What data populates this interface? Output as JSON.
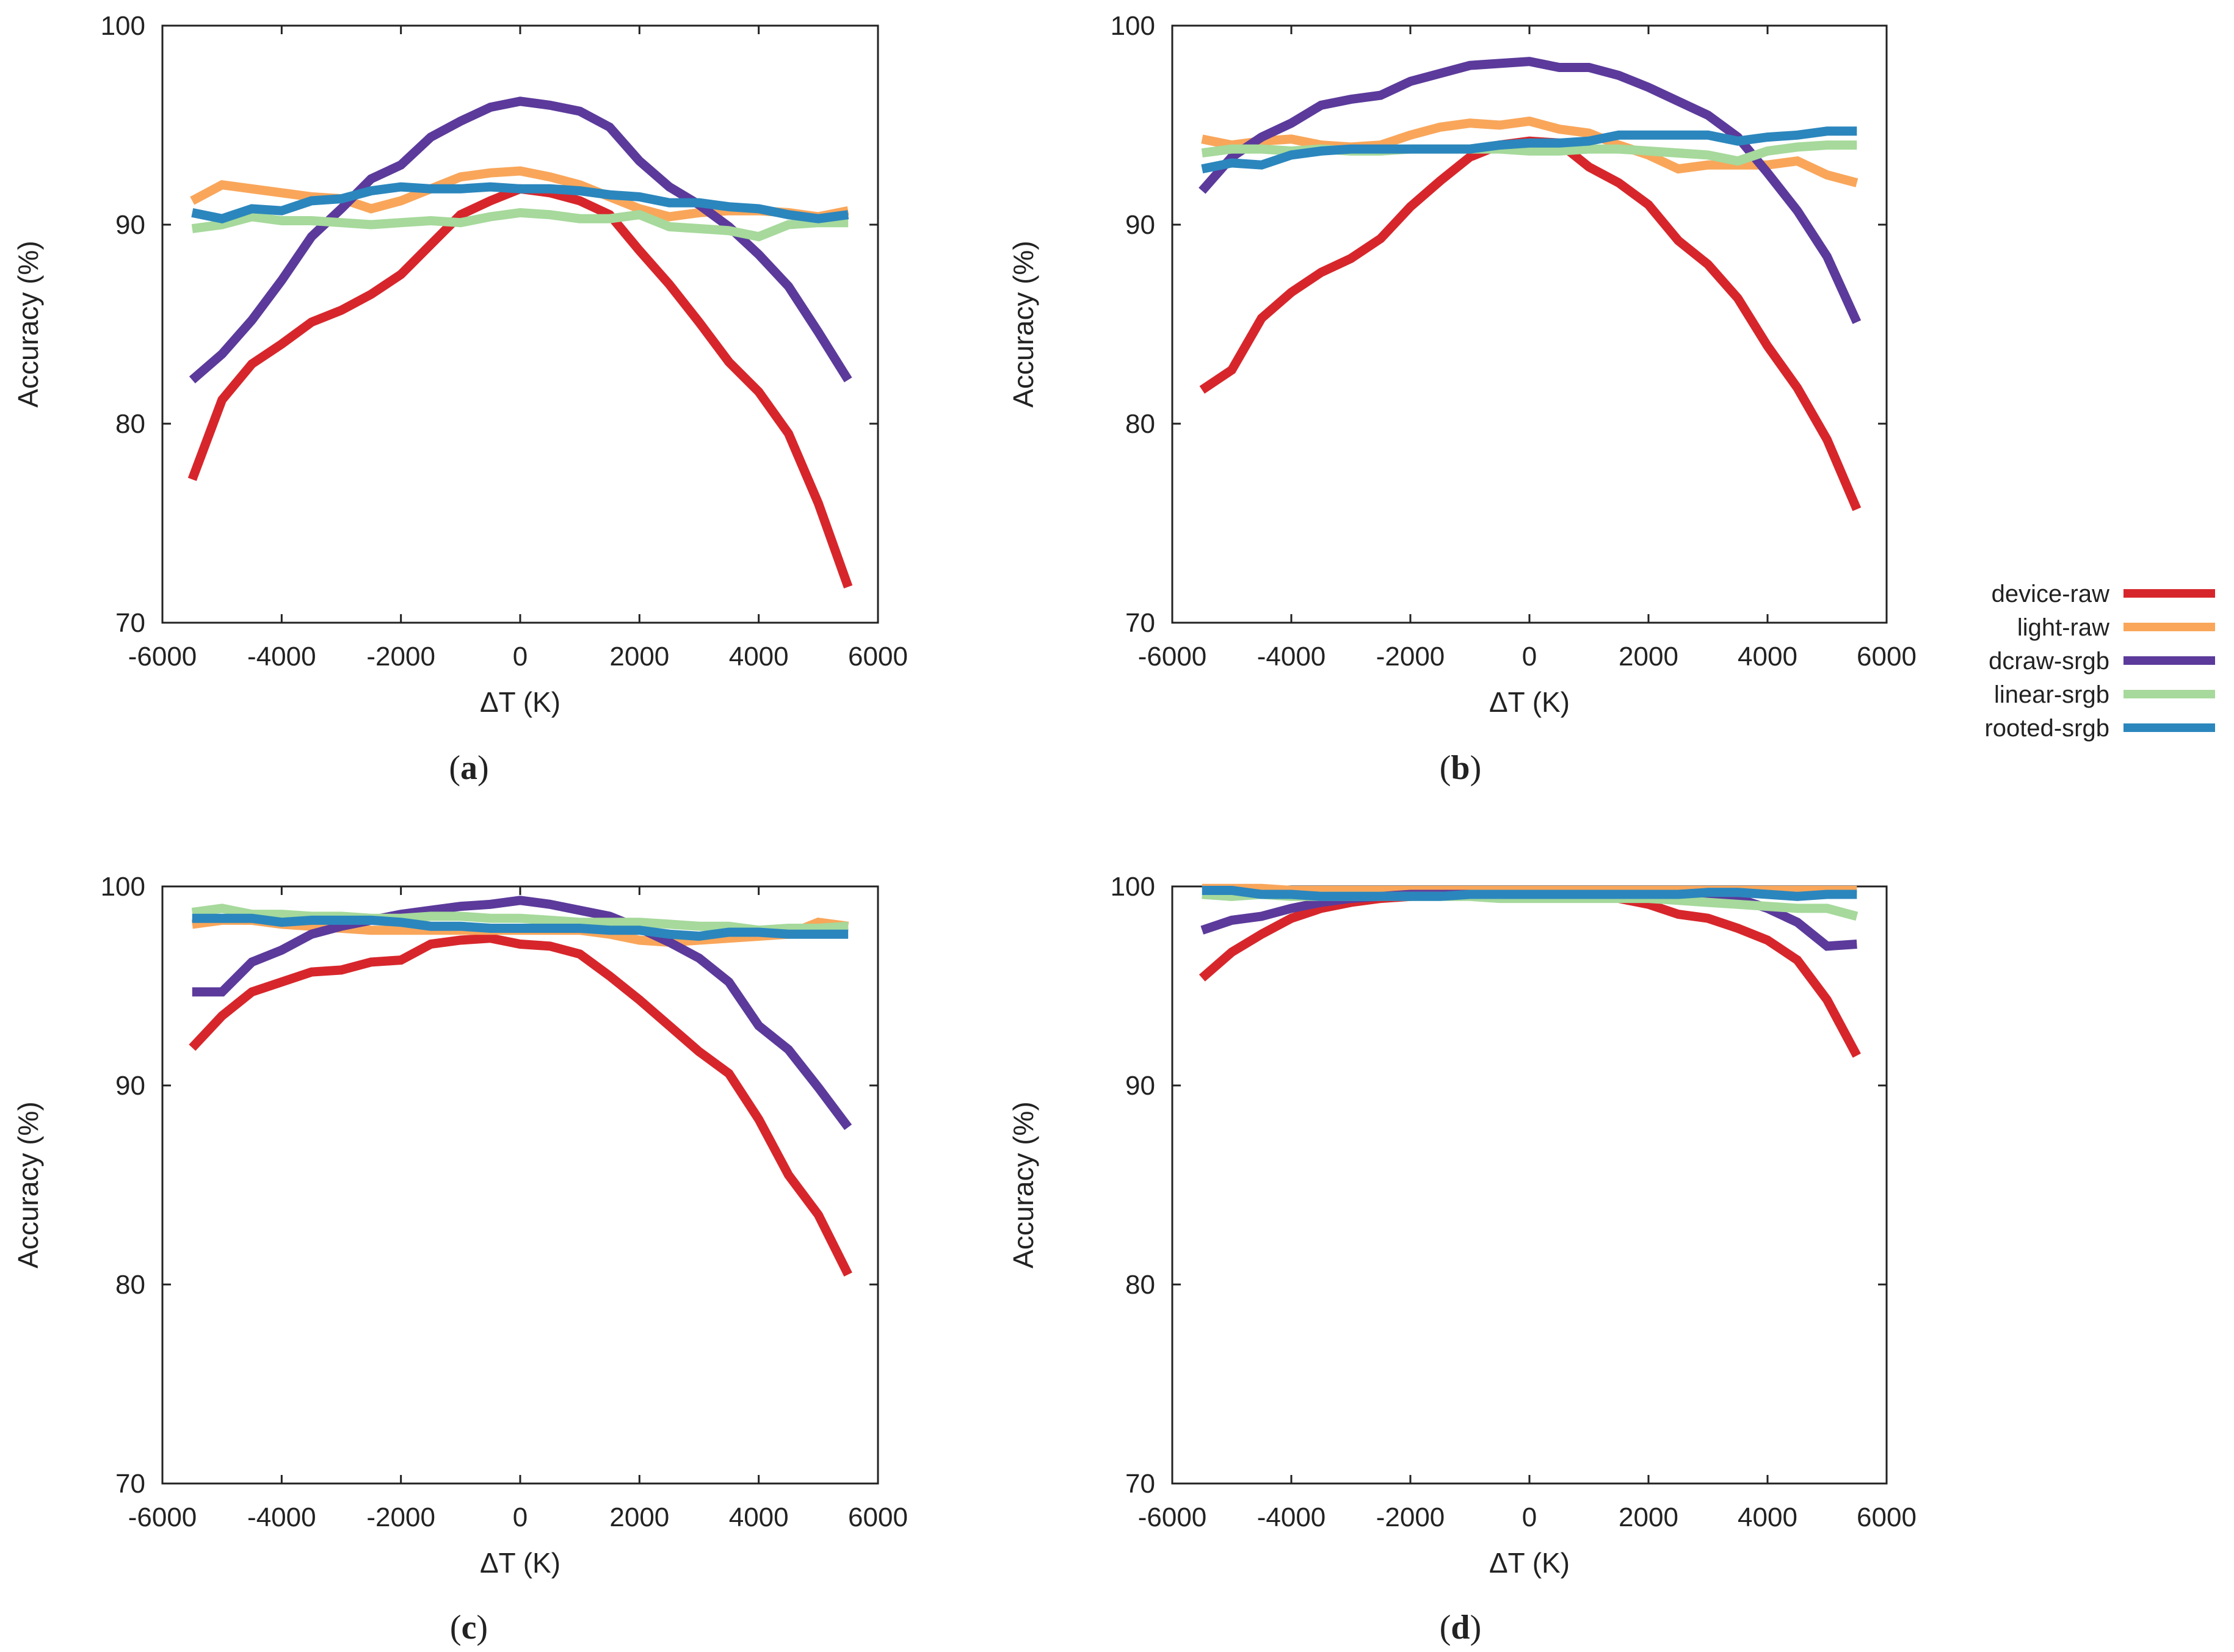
{
  "colors": {
    "device-raw": "#d7262b",
    "light-raw": "#f9a65a",
    "dcraw-srgb": "#5b3a9b",
    "linear-srgb": "#a6d99b",
    "rooted-srgb": "#2b86bd"
  },
  "legend": {
    "entries": [
      {
        "label": "device-raw",
        "color": "#d7262b"
      },
      {
        "label": "light-raw",
        "color": "#f9a65a"
      },
      {
        "label": "dcraw-srgb",
        "color": "#5b3a9b"
      },
      {
        "label": "linear-srgb",
        "color": "#a6d99b"
      },
      {
        "label": "rooted-srgb",
        "color": "#2b86bd"
      }
    ]
  },
  "chart_data": [
    {
      "type": "line",
      "caption_letter": "a",
      "xlabel": "ΔT (K)",
      "ylabel": "Accuracy (%)",
      "xlim": [
        -6000,
        6000
      ],
      "ylim": [
        70,
        100
      ],
      "xticks": [
        -6000,
        -4000,
        -2000,
        0,
        2000,
        4000,
        6000
      ],
      "yticks": [
        70,
        80,
        90,
        100
      ],
      "x": [
        -5500,
        -5000,
        -4500,
        -4000,
        -3500,
        -3000,
        -2500,
        -2000,
        -1500,
        -1000,
        -500,
        0,
        500,
        1000,
        1500,
        2000,
        2500,
        3000,
        3500,
        4000,
        4500,
        5000,
        5500
      ],
      "series": [
        {
          "name": "device-raw",
          "values": [
            77.2,
            81.2,
            83.0,
            84.0,
            85.1,
            85.7,
            86.5,
            87.5,
            89.0,
            90.5,
            91.2,
            91.8,
            91.6,
            91.2,
            90.5,
            88.7,
            87.0,
            85.1,
            83.1,
            81.6,
            79.5,
            76.0,
            71.8
          ]
        },
        {
          "name": "light-raw",
          "values": [
            91.2,
            92.0,
            91.8,
            91.6,
            91.4,
            91.3,
            90.8,
            91.2,
            91.8,
            92.4,
            92.6,
            92.7,
            92.4,
            92.0,
            91.4,
            90.8,
            90.4,
            90.6,
            90.7,
            90.7,
            90.6,
            90.4,
            90.7
          ]
        },
        {
          "name": "dcraw-srgb",
          "values": [
            82.2,
            83.5,
            85.2,
            87.2,
            89.4,
            90.8,
            92.3,
            93.0,
            94.4,
            95.2,
            95.9,
            96.2,
            96.0,
            95.7,
            94.9,
            93.2,
            91.9,
            91.0,
            89.9,
            88.5,
            86.9,
            84.6,
            82.2
          ]
        },
        {
          "name": "linear-srgb",
          "values": [
            89.8,
            90.0,
            90.4,
            90.2,
            90.2,
            90.1,
            90.0,
            90.1,
            90.2,
            90.1,
            90.4,
            90.6,
            90.5,
            90.3,
            90.3,
            90.5,
            89.9,
            89.8,
            89.7,
            89.4,
            90.0,
            90.1,
            90.1
          ]
        },
        {
          "name": "rooted-srgb",
          "values": [
            90.6,
            90.3,
            90.8,
            90.7,
            91.2,
            91.3,
            91.7,
            91.9,
            91.8,
            91.8,
            91.9,
            91.8,
            91.8,
            91.7,
            91.5,
            91.4,
            91.1,
            91.1,
            90.9,
            90.8,
            90.5,
            90.3,
            90.5
          ]
        }
      ]
    },
    {
      "type": "line",
      "caption_letter": "b",
      "xlabel": "ΔT (K)",
      "ylabel": "Accuracy (%)",
      "xlim": [
        -6000,
        6000
      ],
      "ylim": [
        70,
        100
      ],
      "xticks": [
        -6000,
        -4000,
        -2000,
        0,
        2000,
        4000,
        6000
      ],
      "yticks": [
        70,
        80,
        90,
        100
      ],
      "x": [
        -5500,
        -5000,
        -4500,
        -4000,
        -3500,
        -3000,
        -2500,
        -2000,
        -1500,
        -1000,
        -500,
        0,
        500,
        1000,
        1500,
        2000,
        2500,
        3000,
        3500,
        4000,
        4500,
        5000,
        5500
      ],
      "series": [
        {
          "name": "device-raw",
          "values": [
            81.7,
            82.7,
            85.3,
            86.6,
            87.6,
            88.3,
            89.3,
            90.9,
            92.2,
            93.4,
            94.0,
            94.2,
            94.1,
            92.9,
            92.1,
            91.0,
            89.2,
            88.0,
            86.3,
            83.9,
            81.8,
            79.2,
            75.7
          ]
        },
        {
          "name": "light-raw",
          "values": [
            94.3,
            94.0,
            94.2,
            94.3,
            94.0,
            93.9,
            94.0,
            94.5,
            94.9,
            95.1,
            95.0,
            95.2,
            94.8,
            94.6,
            94.0,
            93.5,
            92.8,
            93.0,
            93.0,
            93.0,
            93.2,
            92.5,
            92.1
          ]
        },
        {
          "name": "dcraw-srgb",
          "values": [
            91.7,
            93.4,
            94.4,
            95.1,
            96.0,
            96.3,
            96.5,
            97.2,
            97.6,
            98.0,
            98.1,
            98.2,
            97.9,
            97.9,
            97.5,
            96.9,
            96.2,
            95.5,
            94.4,
            92.6,
            90.7,
            88.4,
            85.1
          ]
        },
        {
          "name": "linear-srgb",
          "values": [
            93.6,
            93.8,
            93.8,
            93.7,
            93.8,
            93.7,
            93.7,
            93.8,
            93.8,
            93.8,
            93.8,
            93.7,
            93.7,
            93.8,
            93.8,
            93.7,
            93.6,
            93.5,
            93.2,
            93.7,
            93.9,
            94.0,
            94.0
          ]
        },
        {
          "name": "rooted-srgb",
          "values": [
            92.8,
            93.1,
            93.0,
            93.5,
            93.7,
            93.8,
            93.8,
            93.8,
            93.8,
            93.8,
            94.0,
            94.1,
            94.1,
            94.2,
            94.5,
            94.5,
            94.5,
            94.5,
            94.2,
            94.4,
            94.5,
            94.7,
            94.7
          ]
        }
      ]
    },
    {
      "type": "line",
      "caption_letter": "c",
      "xlabel": "ΔT (K)",
      "ylabel": "Accuracy (%)",
      "xlim": [
        -6000,
        6000
      ],
      "ylim": [
        70,
        100
      ],
      "xticks": [
        -6000,
        -4000,
        -2000,
        0,
        2000,
        4000,
        6000
      ],
      "yticks": [
        70,
        80,
        90,
        100
      ],
      "x": [
        -5500,
        -5000,
        -4500,
        -4000,
        -3500,
        -3000,
        -2500,
        -2000,
        -1500,
        -1000,
        -500,
        0,
        500,
        1000,
        1500,
        2000,
        2500,
        3000,
        3500,
        4000,
        4500,
        5000,
        5500
      ],
      "series": [
        {
          "name": "device-raw",
          "values": [
            91.9,
            93.5,
            94.7,
            95.2,
            95.7,
            95.8,
            96.2,
            96.3,
            97.1,
            97.3,
            97.4,
            97.1,
            97.0,
            96.6,
            95.5,
            94.3,
            93.0,
            91.7,
            90.6,
            88.3,
            85.5,
            83.5,
            80.5
          ]
        },
        {
          "name": "light-raw",
          "values": [
            98.1,
            98.3,
            98.3,
            98.1,
            98.0,
            97.9,
            97.8,
            97.8,
            97.8,
            97.8,
            97.8,
            97.8,
            97.8,
            97.8,
            97.6,
            97.3,
            97.2,
            97.3,
            97.4,
            97.5,
            97.6,
            98.2,
            98.0
          ]
        },
        {
          "name": "dcraw-srgb",
          "values": [
            94.7,
            94.7,
            96.2,
            96.8,
            97.6,
            98.0,
            98.3,
            98.6,
            98.8,
            99.0,
            99.1,
            99.3,
            99.1,
            98.8,
            98.5,
            97.9,
            97.2,
            96.4,
            95.2,
            93.0,
            91.8,
            89.9,
            87.9
          ]
        },
        {
          "name": "linear-srgb",
          "values": [
            98.7,
            98.9,
            98.6,
            98.6,
            98.5,
            98.5,
            98.4,
            98.4,
            98.5,
            98.5,
            98.4,
            98.4,
            98.3,
            98.2,
            98.2,
            98.2,
            98.1,
            98.0,
            98.0,
            97.8,
            97.9,
            97.9,
            98.0
          ]
        },
        {
          "name": "rooted-srgb",
          "values": [
            98.4,
            98.4,
            98.4,
            98.2,
            98.3,
            98.3,
            98.3,
            98.2,
            98.0,
            98.0,
            97.9,
            97.9,
            97.9,
            97.9,
            97.8,
            97.8,
            97.6,
            97.5,
            97.7,
            97.7,
            97.6,
            97.6,
            97.6
          ]
        }
      ]
    },
    {
      "type": "line",
      "caption_letter": "d",
      "xlabel": "ΔT (K)",
      "ylabel": "Accuracy (%)",
      "xlim": [
        -6000,
        6000
      ],
      "ylim": [
        70,
        100
      ],
      "xticks": [
        -6000,
        -4000,
        -2000,
        0,
        2000,
        4000,
        6000
      ],
      "yticks": [
        70,
        80,
        90,
        100
      ],
      "x": [
        -5500,
        -5000,
        -4500,
        -4000,
        -3500,
        -3000,
        -2500,
        -2000,
        -1500,
        -1000,
        -500,
        0,
        500,
        1000,
        1500,
        2000,
        2500,
        3000,
        3500,
        4000,
        4500,
        5000,
        5500
      ],
      "series": [
        {
          "name": "device-raw",
          "values": [
            95.4,
            96.7,
            97.6,
            98.4,
            98.9,
            99.2,
            99.4,
            99.5,
            99.6,
            99.7,
            99.7,
            99.7,
            99.7,
            99.6,
            99.4,
            99.1,
            98.6,
            98.4,
            97.9,
            97.3,
            96.3,
            94.3,
            91.5
          ]
        },
        {
          "name": "light-raw",
          "values": [
            99.9,
            99.9,
            99.9,
            99.8,
            99.8,
            99.8,
            99.8,
            99.8,
            99.8,
            99.8,
            99.8,
            99.8,
            99.8,
            99.8,
            99.8,
            99.8,
            99.8,
            99.8,
            99.8,
            99.8,
            99.8,
            99.8,
            99.8
          ]
        },
        {
          "name": "dcraw-srgb",
          "values": [
            97.8,
            98.3,
            98.5,
            98.9,
            99.2,
            99.4,
            99.5,
            99.6,
            99.6,
            99.6,
            99.6,
            99.6,
            99.6,
            99.6,
            99.6,
            99.6,
            99.6,
            99.6,
            99.4,
            98.9,
            98.2,
            97.0,
            97.1
          ]
        },
        {
          "name": "linear-srgb",
          "values": [
            99.6,
            99.5,
            99.6,
            99.5,
            99.5,
            99.5,
            99.5,
            99.5,
            99.5,
            99.5,
            99.4,
            99.4,
            99.4,
            99.4,
            99.4,
            99.4,
            99.3,
            99.2,
            99.1,
            99.0,
            98.9,
            98.9,
            98.5
          ]
        },
        {
          "name": "rooted-srgb",
          "values": [
            99.8,
            99.8,
            99.6,
            99.6,
            99.5,
            99.5,
            99.5,
            99.5,
            99.5,
            99.6,
            99.6,
            99.6,
            99.6,
            99.6,
            99.6,
            99.6,
            99.6,
            99.7,
            99.7,
            99.6,
            99.5,
            99.6,
            99.6
          ]
        }
      ]
    }
  ]
}
